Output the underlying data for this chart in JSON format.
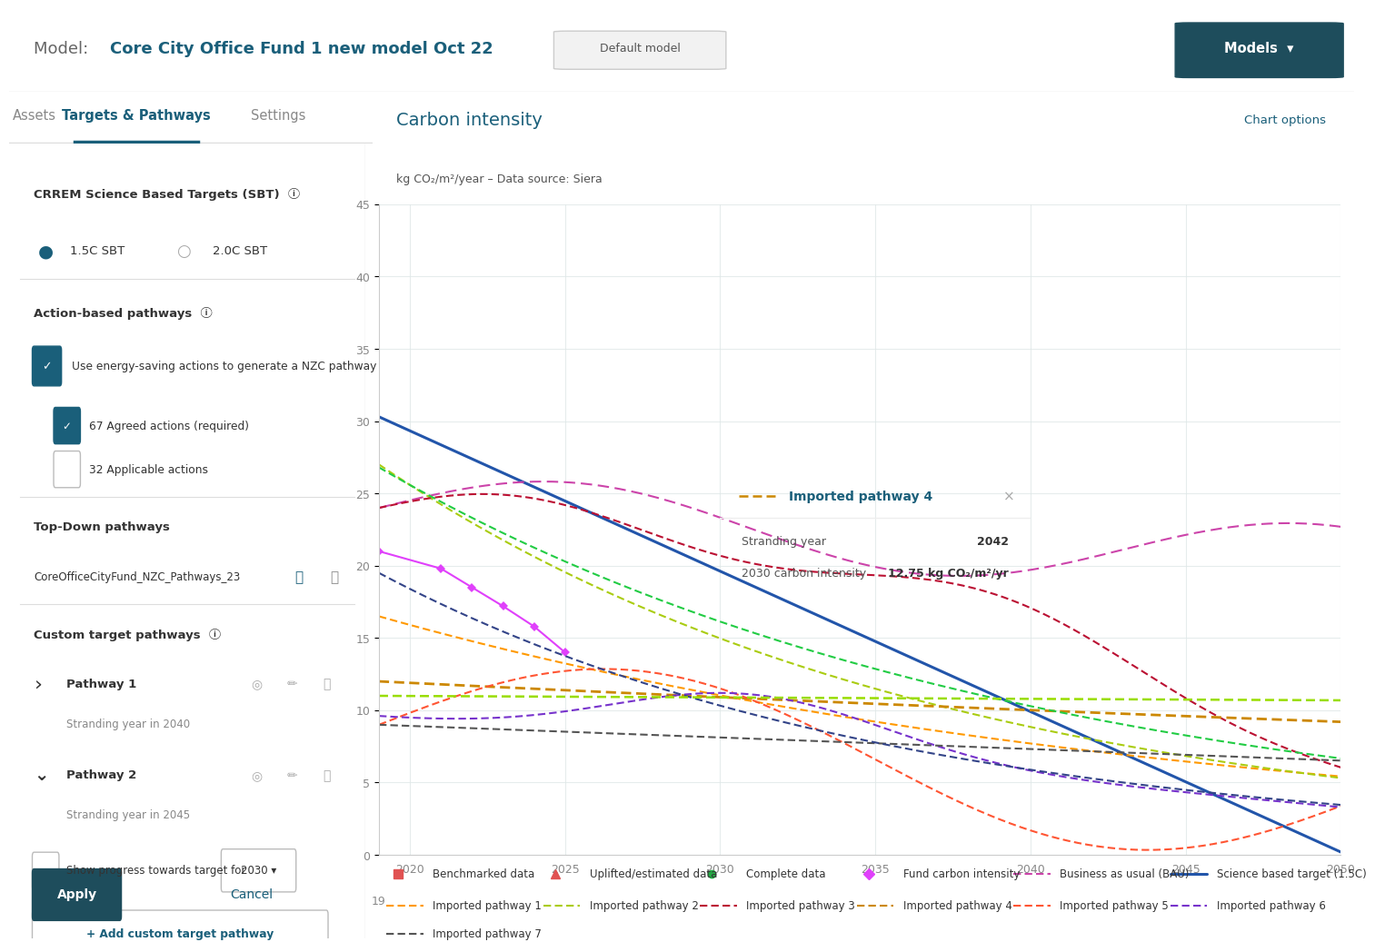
{
  "title": "Carbon intensity",
  "subtitle": "kg CO₂/m²/year – Data source: Siera",
  "chart_options_text": "Chart options",
  "xlim": [
    2019,
    2050
  ],
  "ylim": [
    0,
    45
  ],
  "yticks": [
    0,
    5,
    10,
    15,
    20,
    25,
    30,
    35,
    40,
    45
  ],
  "xticks": [
    2020,
    2025,
    2030,
    2035,
    2040,
    2045,
    2050
  ],
  "xtick_labels": [
    "2020",
    "2025",
    "2030",
    "2035",
    "2040",
    "2045",
    "2050"
  ],
  "bg_color": "#ffffff",
  "grid_color": "#e0e8e8",
  "science_target_color": "#2255aa",
  "bau_color": "#cc44aa",
  "fund_ci_color": "#e040fb",
  "imp1_color": "#ff9900",
  "imp2_color": "#aacc11",
  "imp3_color": "#bb1133",
  "imp4_color": "#cc8800",
  "imp5_color": "#ff5533",
  "imp6_color": "#7733cc",
  "imp7_color": "#555555",
  "green_dashed_color": "#22cc44",
  "dark_blue_dashed_color": "#334488",
  "lime_dashed_color": "#99dd00",
  "header_model_label": "Model: ",
  "header_model_name": "Core City Office Fund 1 new model Oct 22",
  "header_badge": "Default model",
  "header_btn": "Models  ▾",
  "tab_active": "Targets & Pathways",
  "tab_inactive1": "Assets",
  "tab_inactive2": "Settings",
  "section1_title": "CRREM Science Based Targets (SBT)",
  "section2_title": "Action-based pathways",
  "section3_title": "Top-Down pathways",
  "section4_title": "Custom target pathways",
  "pathway_name": "CoreOfficeCityFund_NZC_Pathways_23",
  "pathway1_name": "Pathway 1",
  "pathway1_strand": "Stranding year in 2040",
  "pathway2_name": "Pathway 2",
  "pathway2_strand": "Stranding year in 2045",
  "cb1_text": "Use energy-saving actions to generate a NZC pathway",
  "cb2_text": "67 Agreed actions (required)",
  "cb3_text": "32 Applicable actions",
  "show_progress_text": "Show progress towards target for",
  "dropdown_text": "2030",
  "add_pathway_btn": "+ Add custom target pathway",
  "apply_btn": "Apply",
  "cancel_btn": "Cancel",
  "tooltip_title": "Imported pathway 4",
  "tooltip_strand_label": "Stranding year",
  "tooltip_strand_value": "2042",
  "tooltip_ci_label": "2030 carbon intensity",
  "tooltip_ci_value": "12.75 kg CO₂/m²/yr",
  "legend_row1": [
    {
      "marker": "sq",
      "color": "#e05252",
      "label": "Benchmarked data"
    },
    {
      "marker": "tri",
      "color": "#e05252",
      "label": "Uplifted/estimated data"
    },
    {
      "marker": "dot",
      "color": "#22aa44",
      "label": "Complete data"
    },
    {
      "marker": "dia",
      "color": "#e040fb",
      "label": "Fund carbon intensity"
    },
    {
      "marker": "dash",
      "color": "#cc44aa",
      "label": "Business as usual (BAU)"
    },
    {
      "marker": "line",
      "color": "#2255aa",
      "label": "Science based target (1.5C)"
    }
  ],
  "legend_row2": [
    {
      "marker": "dash",
      "color": "#ff9900",
      "label": "Imported pathway 1"
    },
    {
      "marker": "dash",
      "color": "#aacc11",
      "label": "Imported pathway 2"
    },
    {
      "marker": "dash",
      "color": "#bb1133",
      "label": "Imported pathway 3"
    },
    {
      "marker": "dash",
      "color": "#cc8800",
      "label": "Imported pathway 4"
    },
    {
      "marker": "dash",
      "color": "#ff5533",
      "label": "Imported pathway 5"
    },
    {
      "marker": "dash",
      "color": "#7733cc",
      "label": "Imported pathway 6"
    }
  ],
  "legend_row3": [
    {
      "marker": "dash",
      "color": "#555555",
      "label": "Imported pathway 7"
    }
  ]
}
